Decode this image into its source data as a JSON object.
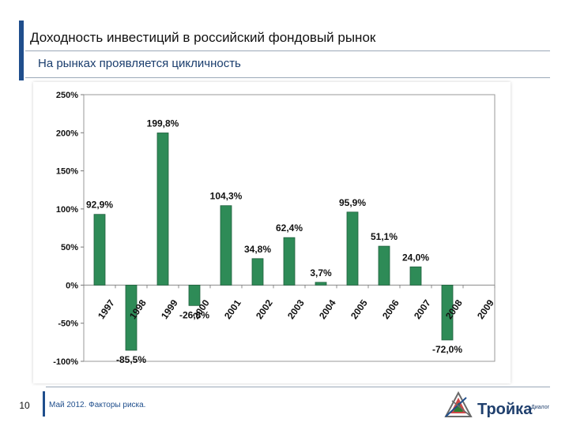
{
  "header": {
    "title": "Доходность инвестиций в российский фондовый рынок",
    "subtitle": "На рынках проявляется цикличность"
  },
  "footer": {
    "page_number": "10",
    "text": "Май 2012. Факторы риска."
  },
  "logo": {
    "name": "Тройка",
    "tagline": "Диалог"
  },
  "colors": {
    "bar": "#2e8b57",
    "accent": "#1f4e8c"
  },
  "chart_data": {
    "type": "bar",
    "categories": [
      "1997",
      "1998",
      "1999",
      "2000",
      "2001",
      "2002",
      "2003",
      "2004",
      "2005",
      "2006",
      "2007",
      "2008",
      "2009"
    ],
    "values": [
      92.9,
      -85.5,
      199.8,
      -26.8,
      104.3,
      34.8,
      62.4,
      3.7,
      95.9,
      51.1,
      24.0,
      -72.0,
      null
    ],
    "data_labels": [
      "92,9%",
      "-85,5%",
      "199,8%",
      "-26,8%",
      "104,3%",
      "34,8%",
      "62,4%",
      "3,7%",
      "95,9%",
      "51,1%",
      "24,0%",
      "-72,0%",
      ""
    ],
    "yticks": [
      "250%",
      "200%",
      "150%",
      "100%",
      "50%",
      "0%",
      "-50%",
      "-100%"
    ],
    "ylim": [
      -100,
      250
    ],
    "grid": false,
    "legend": "none"
  }
}
